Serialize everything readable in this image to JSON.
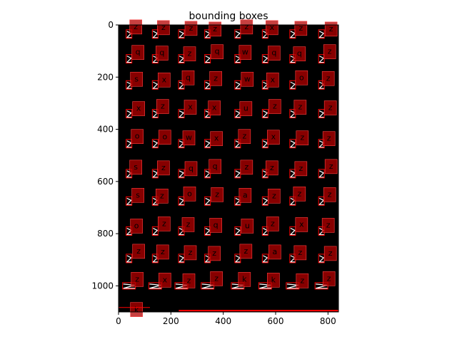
{
  "chart_data": {
    "type": "scatter",
    "title": "bounding boxes",
    "xlabel": "",
    "ylabel": "",
    "xlim": [
      0,
      840
    ],
    "ylim": [
      1100,
      0
    ],
    "y_inverted": true,
    "x_ticks": [
      0,
      200,
      400,
      600,
      800
    ],
    "y_ticks": [
      0,
      200,
      400,
      600,
      800,
      1000
    ],
    "grid": false,
    "background_color": "#000000",
    "box_outline_color": "#ff0000",
    "label_box_color": "#b40000",
    "columns_x": [
      40,
      140,
      240,
      340,
      455,
      560,
      665,
      775
    ],
    "rows_y": [
      35,
      130,
      230,
      340,
      455,
      570,
      675,
      790,
      895,
      1000
    ],
    "label_rows": [
      [
        "z",
        "z",
        "z",
        "z",
        "z",
        "x",
        "z",
        "z"
      ],
      [
        "q",
        "q",
        "z",
        "q",
        "w",
        "q",
        "q",
        "z"
      ],
      [
        "s",
        "x",
        "q",
        "z",
        "w",
        "x",
        "o",
        "z"
      ],
      [
        "x",
        "z",
        "x",
        "x",
        "u",
        "z",
        "z",
        "z"
      ],
      [
        "o",
        "o",
        "w",
        "x",
        "z",
        "x",
        "z",
        "z"
      ],
      [
        "s",
        "z",
        "q",
        "q",
        "z",
        "z",
        "z",
        "z"
      ],
      [
        "s",
        "z",
        "o",
        "z",
        "a",
        "z",
        "z",
        "z"
      ],
      [
        "o",
        "z",
        "z",
        "q",
        "u",
        "z",
        "x",
        "z"
      ],
      [
        "z",
        "z",
        "z",
        "z",
        "z",
        "a",
        "z",
        "z"
      ],
      [
        "z",
        "x",
        "z",
        "z",
        "k",
        "k",
        "z",
        "z"
      ]
    ],
    "extra_labels": [
      "k"
    ]
  }
}
